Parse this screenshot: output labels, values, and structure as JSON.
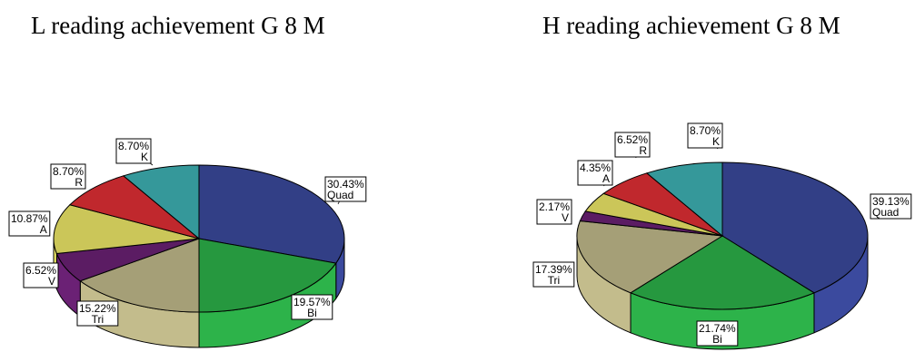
{
  "chart_data": [
    {
      "type": "pie",
      "title": "L reading achievement G 8 M",
      "slices": [
        {
          "name": "Quad",
          "value": 30.43,
          "pct_label": "30.43%",
          "color": "#323F86"
        },
        {
          "name": "Bi",
          "value": 19.57,
          "pct_label": "19.57%",
          "color": "#26983F"
        },
        {
          "name": "Tri",
          "value": 15.22,
          "pct_label": "15.22%",
          "color": "#A59F77"
        },
        {
          "name": "V",
          "value": 6.52,
          "pct_label": "6.52%",
          "color": "#5B1C63"
        },
        {
          "name": "A",
          "value": 10.87,
          "pct_label": "10.87%",
          "color": "#CBC659"
        },
        {
          "name": "R",
          "value": 8.7,
          "pct_label": "8.70%",
          "color": "#C0282D"
        },
        {
          "name": "K",
          "value": 8.7,
          "pct_label": "8.70%",
          "color": "#35989A"
        }
      ]
    },
    {
      "type": "pie",
      "title": "H reading achievement G 8 M",
      "slices": [
        {
          "name": "Quad",
          "value": 39.13,
          "pct_label": "39.13%",
          "color": "#323F86"
        },
        {
          "name": "Bi",
          "value": 21.74,
          "pct_label": "21.74%",
          "color": "#26983F"
        },
        {
          "name": "Tri",
          "value": 17.39,
          "pct_label": "17.39%",
          "color": "#A59F77"
        },
        {
          "name": "V",
          "value": 2.17,
          "pct_label": "2.17%",
          "color": "#5B1C63"
        },
        {
          "name": "A",
          "value": 4.35,
          "pct_label": "4.35%",
          "color": "#CBC659"
        },
        {
          "name": "R",
          "value": 6.52,
          "pct_label": "6.52%",
          "color": "#C0282D"
        },
        {
          "name": "K",
          "value": 8.7,
          "pct_label": "8.70%",
          "color": "#35989A"
        }
      ]
    }
  ]
}
